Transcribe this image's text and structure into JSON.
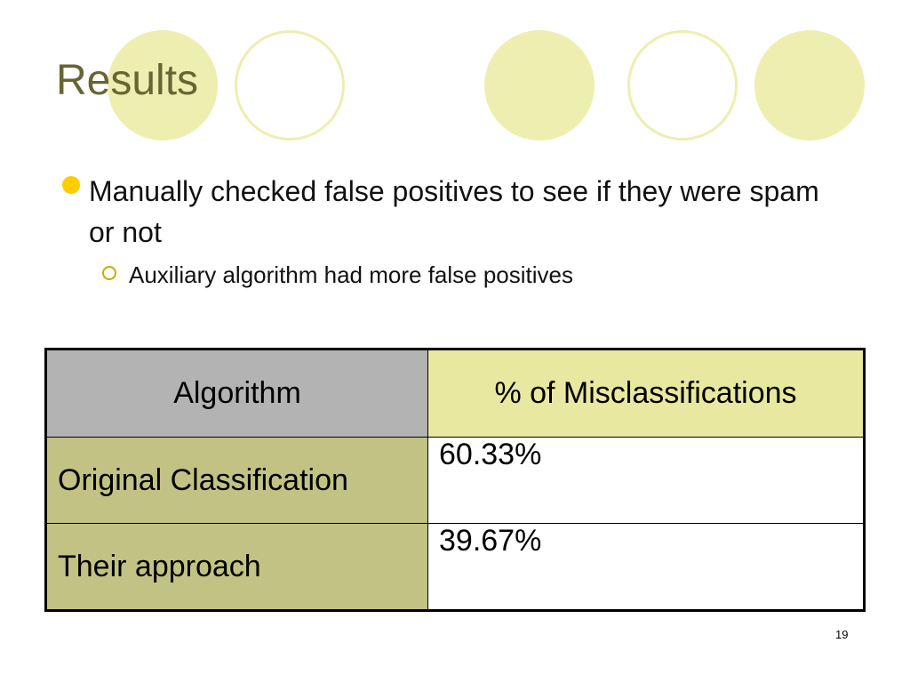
{
  "slide": {
    "title": "Results",
    "bullets": [
      {
        "text": "Manually checked false positives to see if they were spam or not",
        "sub": [
          "Auxiliary algorithm had more false positives"
        ]
      }
    ],
    "table": {
      "headers": [
        "Algorithm",
        "% of Misclassifications"
      ],
      "rows": [
        [
          "Original Classification",
          "60.33%"
        ],
        [
          "Their approach",
          "39.67%"
        ]
      ]
    },
    "page_number": "19"
  },
  "colors": {
    "title": "#666633",
    "decor_circles": "#eeeeb0",
    "bullet": "#ffcc00",
    "header_gray": "#b3b3b3",
    "header_yellow": "#e8e8a0",
    "row_label_olive": "#c2c285"
  }
}
